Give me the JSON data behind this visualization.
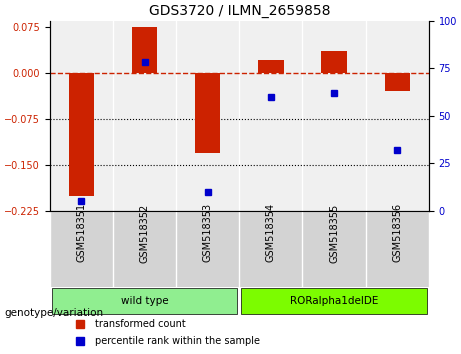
{
  "title": "GDS3720 / ILMN_2659858",
  "samples": [
    "GSM518351",
    "GSM518352",
    "GSM518353",
    "GSM518354",
    "GSM518355",
    "GSM518356"
  ],
  "bar_values": [
    -0.2,
    0.075,
    -0.13,
    0.02,
    0.035,
    -0.03
  ],
  "percentile_values": [
    5,
    78,
    10,
    60,
    62,
    32
  ],
  "groups": [
    {
      "label": "wild type",
      "samples": [
        "GSM518351",
        "GSM518352",
        "GSM518353"
      ],
      "color": "#90EE90"
    },
    {
      "label": "RORalpha1delDE",
      "samples": [
        "GSM518354",
        "GSM518355",
        "GSM518356"
      ],
      "color": "#7CFC00"
    }
  ],
  "bar_color": "#CC2200",
  "dot_color": "#0000CC",
  "ylim_left": [
    -0.225,
    0.085
  ],
  "ylim_right": [
    0,
    100
  ],
  "y_ticks_left": [
    0.075,
    0,
    -0.075,
    -0.15,
    -0.225
  ],
  "y_ticks_right": [
    100,
    75,
    50,
    25,
    0
  ],
  "hline_y": 0,
  "dotted_lines": [
    -0.075,
    -0.15
  ],
  "legend_labels": [
    "transformed count",
    "percentile rank within the sample"
  ],
  "background_color": "#ffffff",
  "group_label": "genotype/variation"
}
